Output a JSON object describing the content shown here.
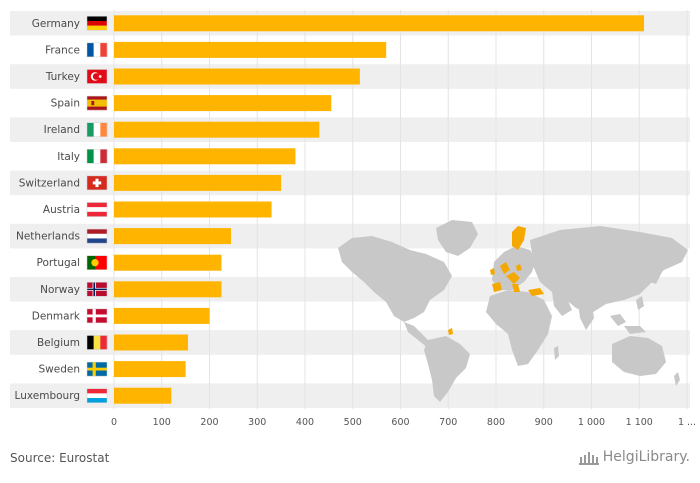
{
  "chart_data": {
    "type": "bar",
    "orientation": "horizontal",
    "categories": [
      "Germany",
      "France",
      "Turkey",
      "Spain",
      "Ireland",
      "Italy",
      "Switzerland",
      "Austria",
      "Netherlands",
      "Portugal",
      "Norway",
      "Denmark",
      "Belgium",
      "Sweden",
      "Luxembourg"
    ],
    "values": [
      1110,
      570,
      515,
      455,
      430,
      380,
      350,
      330,
      245,
      225,
      225,
      200,
      155,
      150,
      120
    ],
    "x_ticks": [
      "0",
      "100",
      "200",
      "300",
      "400",
      "500",
      "600",
      "700",
      "800",
      "900",
      "1 000",
      "1 100",
      "1 ..."
    ],
    "xlim": [
      0,
      1200
    ],
    "grid": true,
    "colors": {
      "bar": "#FFB400",
      "row_band": "#EFEFEF",
      "map_land": "#C8C8C8",
      "map_highlight": "#F5A800"
    },
    "flags": [
      "flag-germany-icon",
      "flag-france-icon",
      "flag-turkey-icon",
      "flag-spain-icon",
      "flag-ireland-icon",
      "flag-italy-icon",
      "flag-switzerland-icon",
      "flag-austria-icon",
      "flag-netherlands-icon",
      "flag-portugal-icon",
      "flag-norway-icon",
      "flag-denmark-icon",
      "flag-belgium-icon",
      "flag-sweden-icon",
      "flag-luxembourg-icon"
    ]
  },
  "footer": {
    "source": "Source: Eurostat",
    "brand": "HelgiLibrary."
  }
}
